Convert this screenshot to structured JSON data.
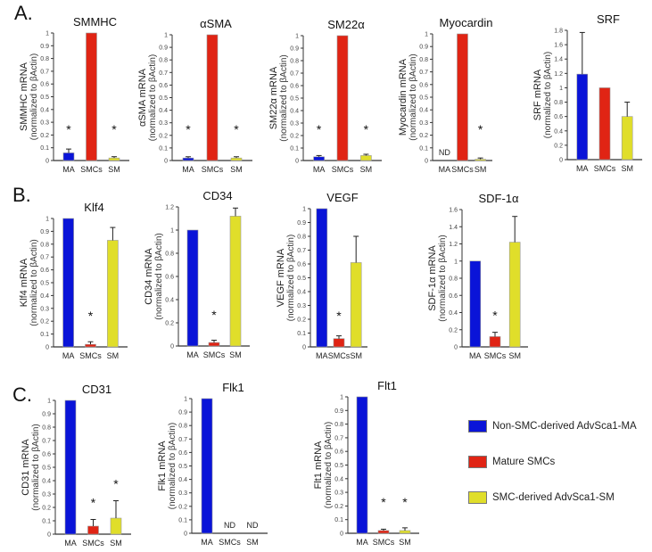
{
  "panels": {
    "a": "A.",
    "b": "B.",
    "c": "C."
  },
  "legend": [
    {
      "label": "Non-SMC-derived AdvSca1-MA",
      "color": "#0a14d8"
    },
    {
      "label": "Mature SMCs",
      "color": "#e02414"
    },
    {
      "label": "SMC-derived AdvSca1-SM",
      "color": "#e0de2a"
    }
  ],
  "chart_data": [
    {
      "type": "bar",
      "panel": "A",
      "title": "SMMHC",
      "ylabel": [
        "SMMHC mRNA",
        "(normalized to βActin)"
      ],
      "categories": [
        "MA",
        "SMCs",
        "SM"
      ],
      "values": [
        0.06,
        1.0,
        0.02
      ],
      "errors": [
        0.03,
        0,
        0.01
      ],
      "significant": [
        true,
        false,
        true
      ],
      "not_detected": [
        false,
        false,
        false
      ],
      "ylim": [
        0,
        1
      ],
      "ystep": 0.1
    },
    {
      "type": "bar",
      "panel": "A",
      "title": "αSMA",
      "ylabel": [
        "αSMA mRNA",
        "(normalized to βActin)"
      ],
      "categories": [
        "MA",
        "SMCs",
        "SM"
      ],
      "values": [
        0.02,
        1.0,
        0.02
      ],
      "errors": [
        0.01,
        0,
        0.01
      ],
      "significant": [
        true,
        false,
        true
      ],
      "not_detected": [
        false,
        false,
        false
      ],
      "ylim": [
        0,
        1
      ],
      "ystep": 0.1
    },
    {
      "type": "bar",
      "panel": "A",
      "title": "SM22α",
      "ylabel": [
        "SM22α mRNA",
        "(normalized to βActin)"
      ],
      "categories": [
        "MA",
        "SMCs",
        "SM"
      ],
      "values": [
        0.03,
        1.0,
        0.04
      ],
      "errors": [
        0.01,
        0,
        0.01
      ],
      "significant": [
        true,
        false,
        true
      ],
      "not_detected": [
        false,
        false,
        false
      ],
      "ylim": [
        0,
        1
      ],
      "ystep": 0.1
    },
    {
      "type": "bar",
      "panel": "A",
      "title": "Myocardin",
      "ylabel": [
        "Myocardin mRNA",
        "(normalized to βActin)"
      ],
      "categories": [
        "MA",
        "SMCs",
        "SM"
      ],
      "values": [
        0,
        1.0,
        0.01
      ],
      "errors": [
        0,
        0,
        0.01
      ],
      "significant": [
        false,
        false,
        true
      ],
      "not_detected": [
        true,
        false,
        false
      ],
      "nd_label": "ND",
      "ylim": [
        0,
        1
      ],
      "ystep": 0.1
    },
    {
      "type": "bar",
      "panel": "A",
      "title": "SRF",
      "ylabel": [
        "SRF mRNA",
        "(normalized to βActin)"
      ],
      "categories": [
        "MA",
        "SMCs",
        "SM"
      ],
      "values": [
        1.19,
        1.0,
        0.6
      ],
      "errors": [
        0.58,
        0,
        0.2
      ],
      "significant": [
        false,
        false,
        false
      ],
      "not_detected": [
        false,
        false,
        false
      ],
      "ylim": [
        0,
        1.8
      ],
      "ystep": 0.2
    },
    {
      "type": "bar",
      "panel": "B",
      "title": "Klf4",
      "ylabel": [
        "Klf4 mRNA",
        "(normalized to βActin)"
      ],
      "categories": [
        "MA",
        "SMCs",
        "SM"
      ],
      "values": [
        1.0,
        0.02,
        0.83
      ],
      "errors": [
        0,
        0.02,
        0.1
      ],
      "significant": [
        false,
        true,
        false
      ],
      "not_detected": [
        false,
        false,
        false
      ],
      "ylim": [
        0,
        1
      ],
      "ystep": 0.1
    },
    {
      "type": "bar",
      "panel": "B",
      "title": "CD34",
      "ylabel": [
        "CD34 mRNA",
        "(normalized to βActin)"
      ],
      "categories": [
        "MA",
        "SMCs",
        "SM"
      ],
      "values": [
        1.0,
        0.03,
        1.12
      ],
      "errors": [
        0,
        0.02,
        0.07
      ],
      "significant": [
        false,
        true,
        false
      ],
      "not_detected": [
        false,
        false,
        false
      ],
      "ylim": [
        0,
        1.2
      ],
      "ystep": 0.2
    },
    {
      "type": "bar",
      "panel": "B",
      "title": "VEGF",
      "ylabel": [
        "VEGF mRNA",
        "(normalized to βActin)"
      ],
      "categories": [
        "MA",
        "SMCs",
        "SM"
      ],
      "values": [
        1.0,
        0.06,
        0.61
      ],
      "errors": [
        0,
        0.02,
        0.19
      ],
      "significant": [
        false,
        true,
        false
      ],
      "not_detected": [
        false,
        false,
        false
      ],
      "ylim": [
        0,
        1
      ],
      "ystep": 0.1
    },
    {
      "type": "bar",
      "panel": "B",
      "title": "SDF-1α",
      "ylabel": [
        "SDF-1α mRNA",
        "(normalized to βActin)"
      ],
      "categories": [
        "MA",
        "SMCs",
        "SM"
      ],
      "values": [
        1.0,
        0.12,
        1.22
      ],
      "errors": [
        0,
        0.05,
        0.3
      ],
      "significant": [
        false,
        true,
        false
      ],
      "not_detected": [
        false,
        false,
        false
      ],
      "ylim": [
        0,
        1.6
      ],
      "ystep": 0.2
    },
    {
      "type": "bar",
      "panel": "C",
      "title": "CD31",
      "ylabel": [
        "CD31 mRNA",
        "(normalized to βActin)"
      ],
      "categories": [
        "MA",
        "SMCs",
        "SM"
      ],
      "values": [
        1.0,
        0.06,
        0.12
      ],
      "errors": [
        0,
        0.05,
        0.13
      ],
      "significant": [
        false,
        true,
        true
      ],
      "not_detected": [
        false,
        false,
        false
      ],
      "ylim": [
        0,
        1
      ],
      "ystep": 0.1
    },
    {
      "type": "bar",
      "panel": "C",
      "title": "Flk1",
      "ylabel": [
        "Flk1 mRNA",
        "(normalized to βActin)"
      ],
      "categories": [
        "MA",
        "SMCs",
        "SM"
      ],
      "values": [
        1.0,
        0,
        0
      ],
      "errors": [
        0,
        0,
        0
      ],
      "significant": [
        false,
        false,
        false
      ],
      "not_detected": [
        false,
        true,
        true
      ],
      "nd_label": "ND",
      "ylim": [
        0,
        1
      ],
      "ystep": 0.1
    },
    {
      "type": "bar",
      "panel": "C",
      "title": "Flt1",
      "ylabel": [
        "Flt1 mRNA",
        "(normalized to βActin)"
      ],
      "categories": [
        "MA",
        "SMCs",
        "SM"
      ],
      "values": [
        1.0,
        0.02,
        0.02
      ],
      "errors": [
        0,
        0.01,
        0.02
      ],
      "significant": [
        false,
        true,
        true
      ],
      "not_detected": [
        false,
        false,
        false
      ],
      "ylim": [
        0,
        1
      ],
      "ystep": 0.1
    }
  ]
}
